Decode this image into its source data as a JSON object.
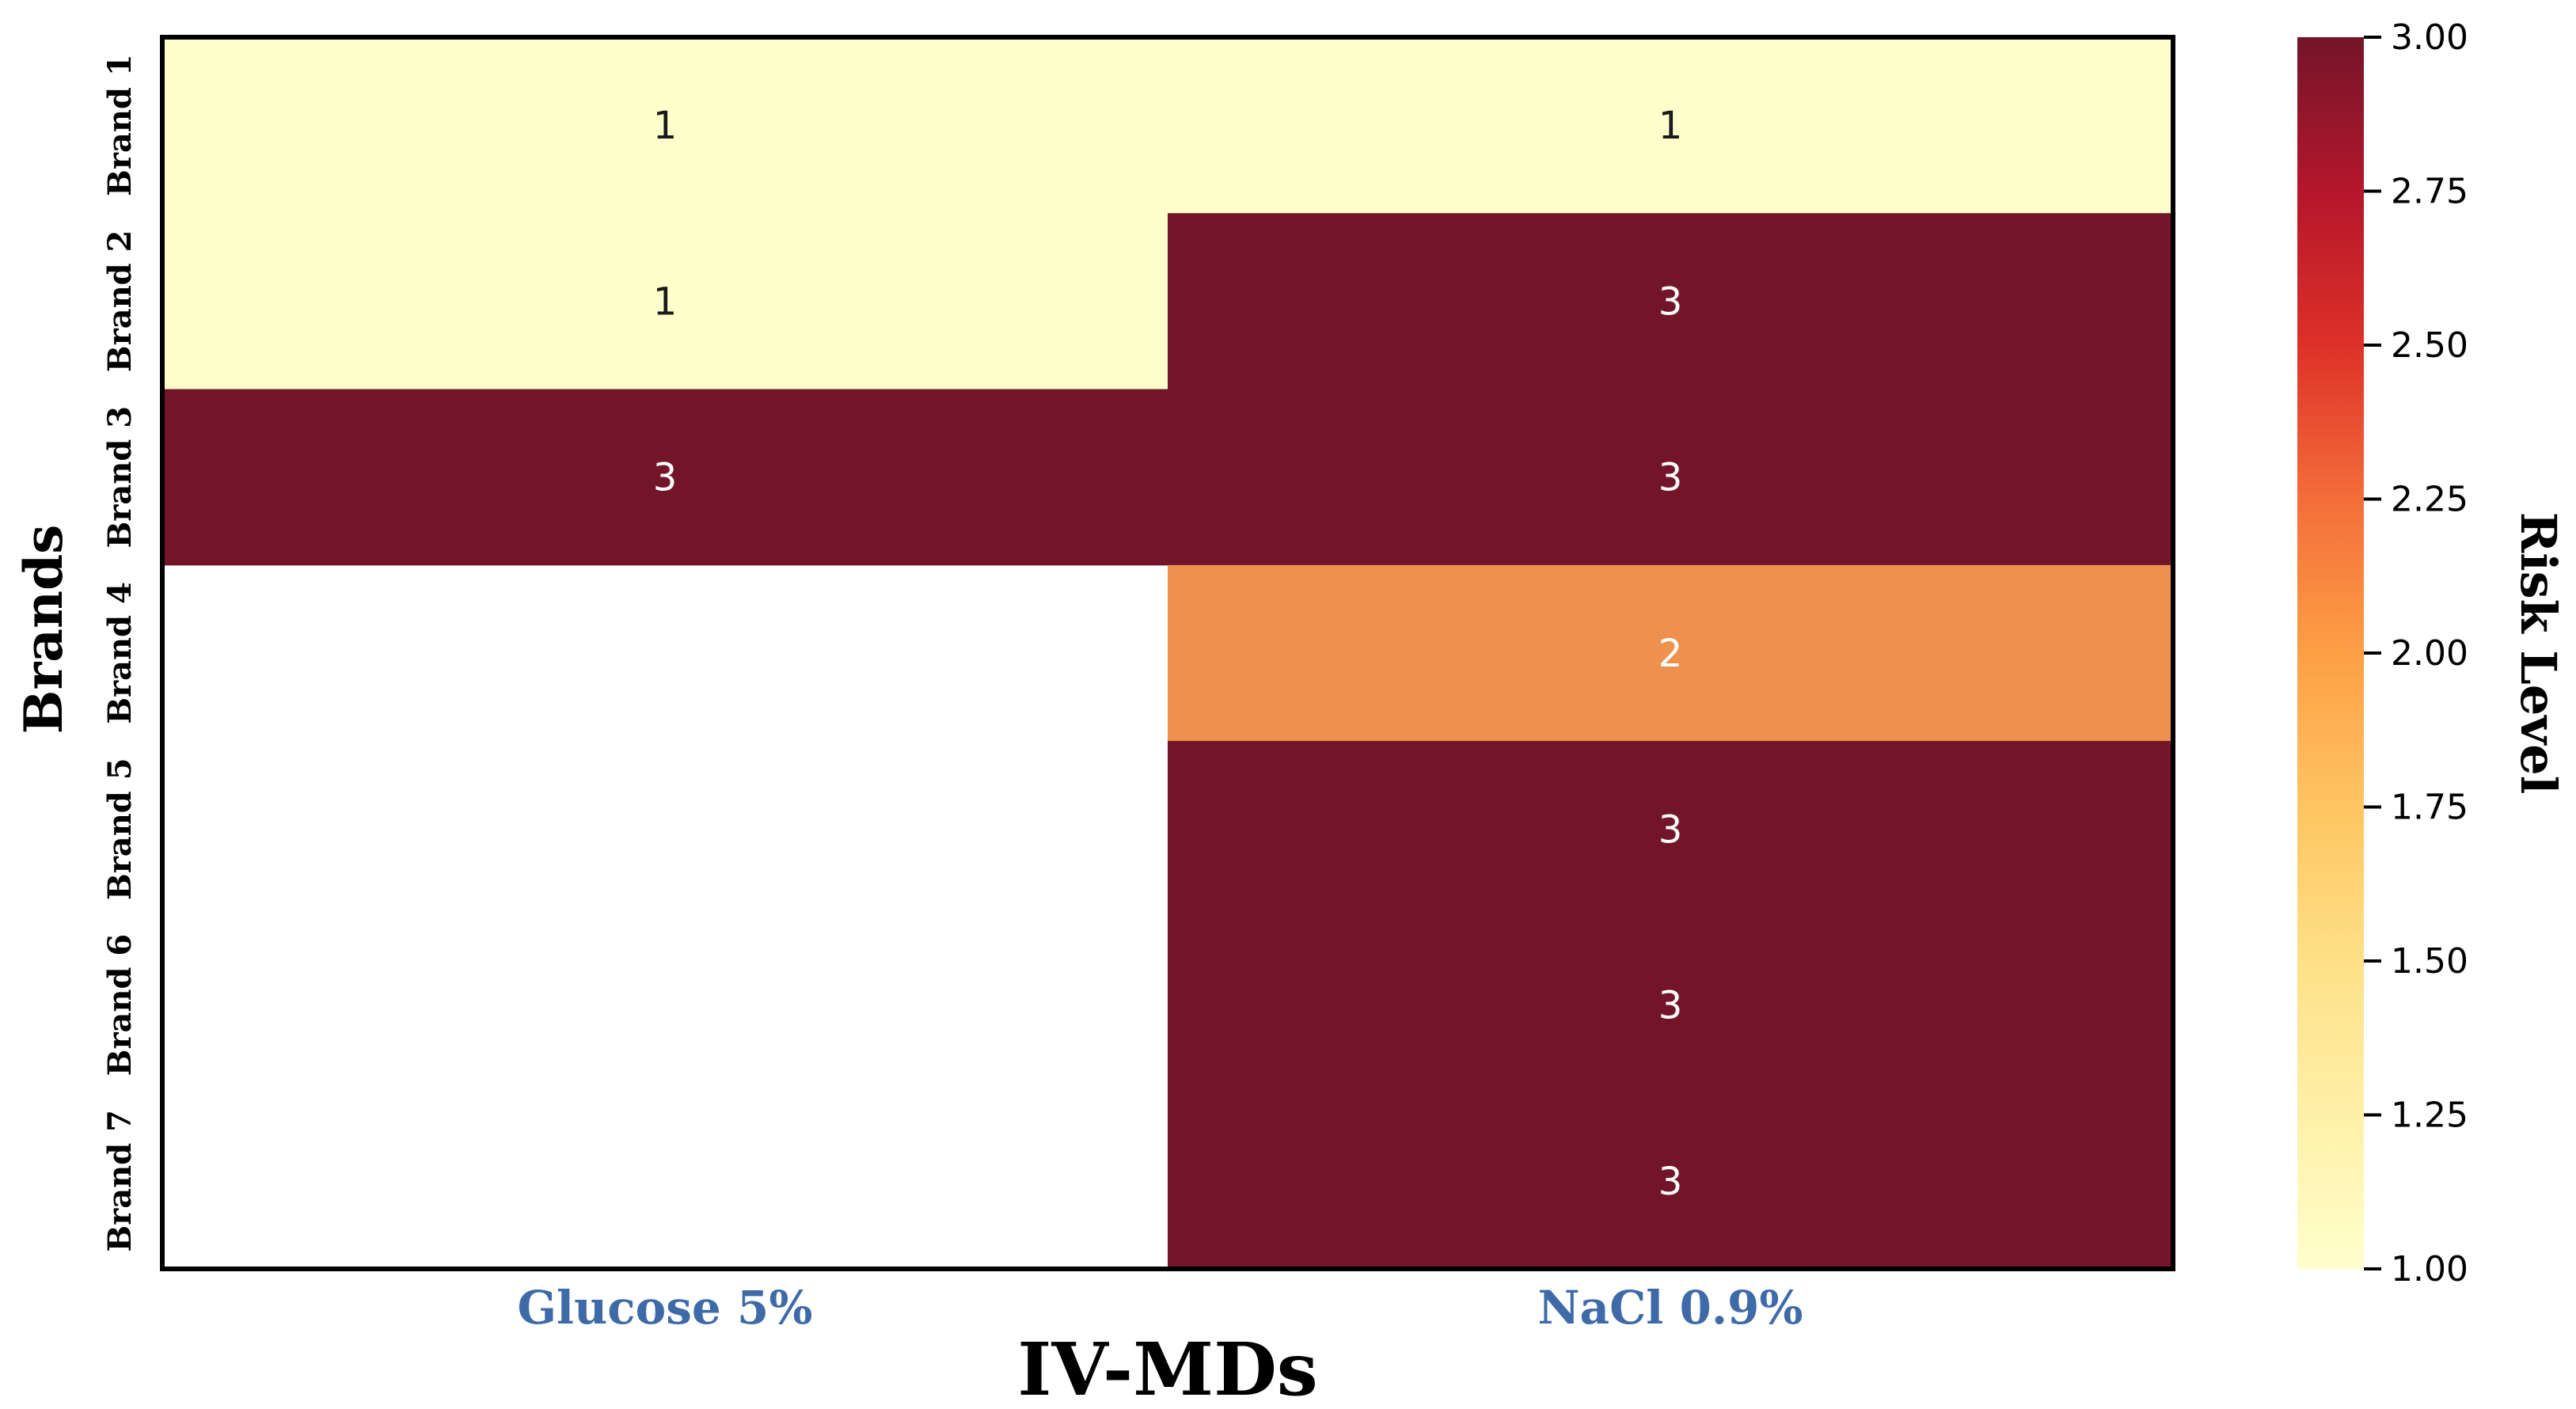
{
  "colors": {
    "low": "#ffffcc",
    "mid": "#ee914f",
    "high": "#731529",
    "xtick": "#3e6ba8",
    "text_dark": "#1a1a1a",
    "text_light": "#ffffff"
  },
  "chart_data": {
    "type": "heatmap",
    "xlabel": "IV-MDs",
    "ylabel": "Brands",
    "x_categories": [
      "Glucose 5%",
      "NaCl 0.9%"
    ],
    "y_categories": [
      "Brand 1",
      "Brand 2",
      "Brand 3",
      "Brand 4",
      "Brand 5",
      "Brand 6",
      "Brand 7"
    ],
    "values": [
      [
        1,
        1
      ],
      [
        1,
        3
      ],
      [
        3,
        3
      ],
      [
        null,
        2
      ],
      [
        null,
        3
      ],
      [
        null,
        3
      ],
      [
        null,
        3
      ]
    ],
    "colorbar": {
      "label": "Risk Level",
      "range": [
        1.0,
        3.0
      ],
      "ticks": [
        "1.00",
        "1.25",
        "1.50",
        "1.75",
        "2.00",
        "2.25",
        "2.50",
        "2.75",
        "3.00"
      ],
      "colormap": "YlOrRd"
    }
  }
}
